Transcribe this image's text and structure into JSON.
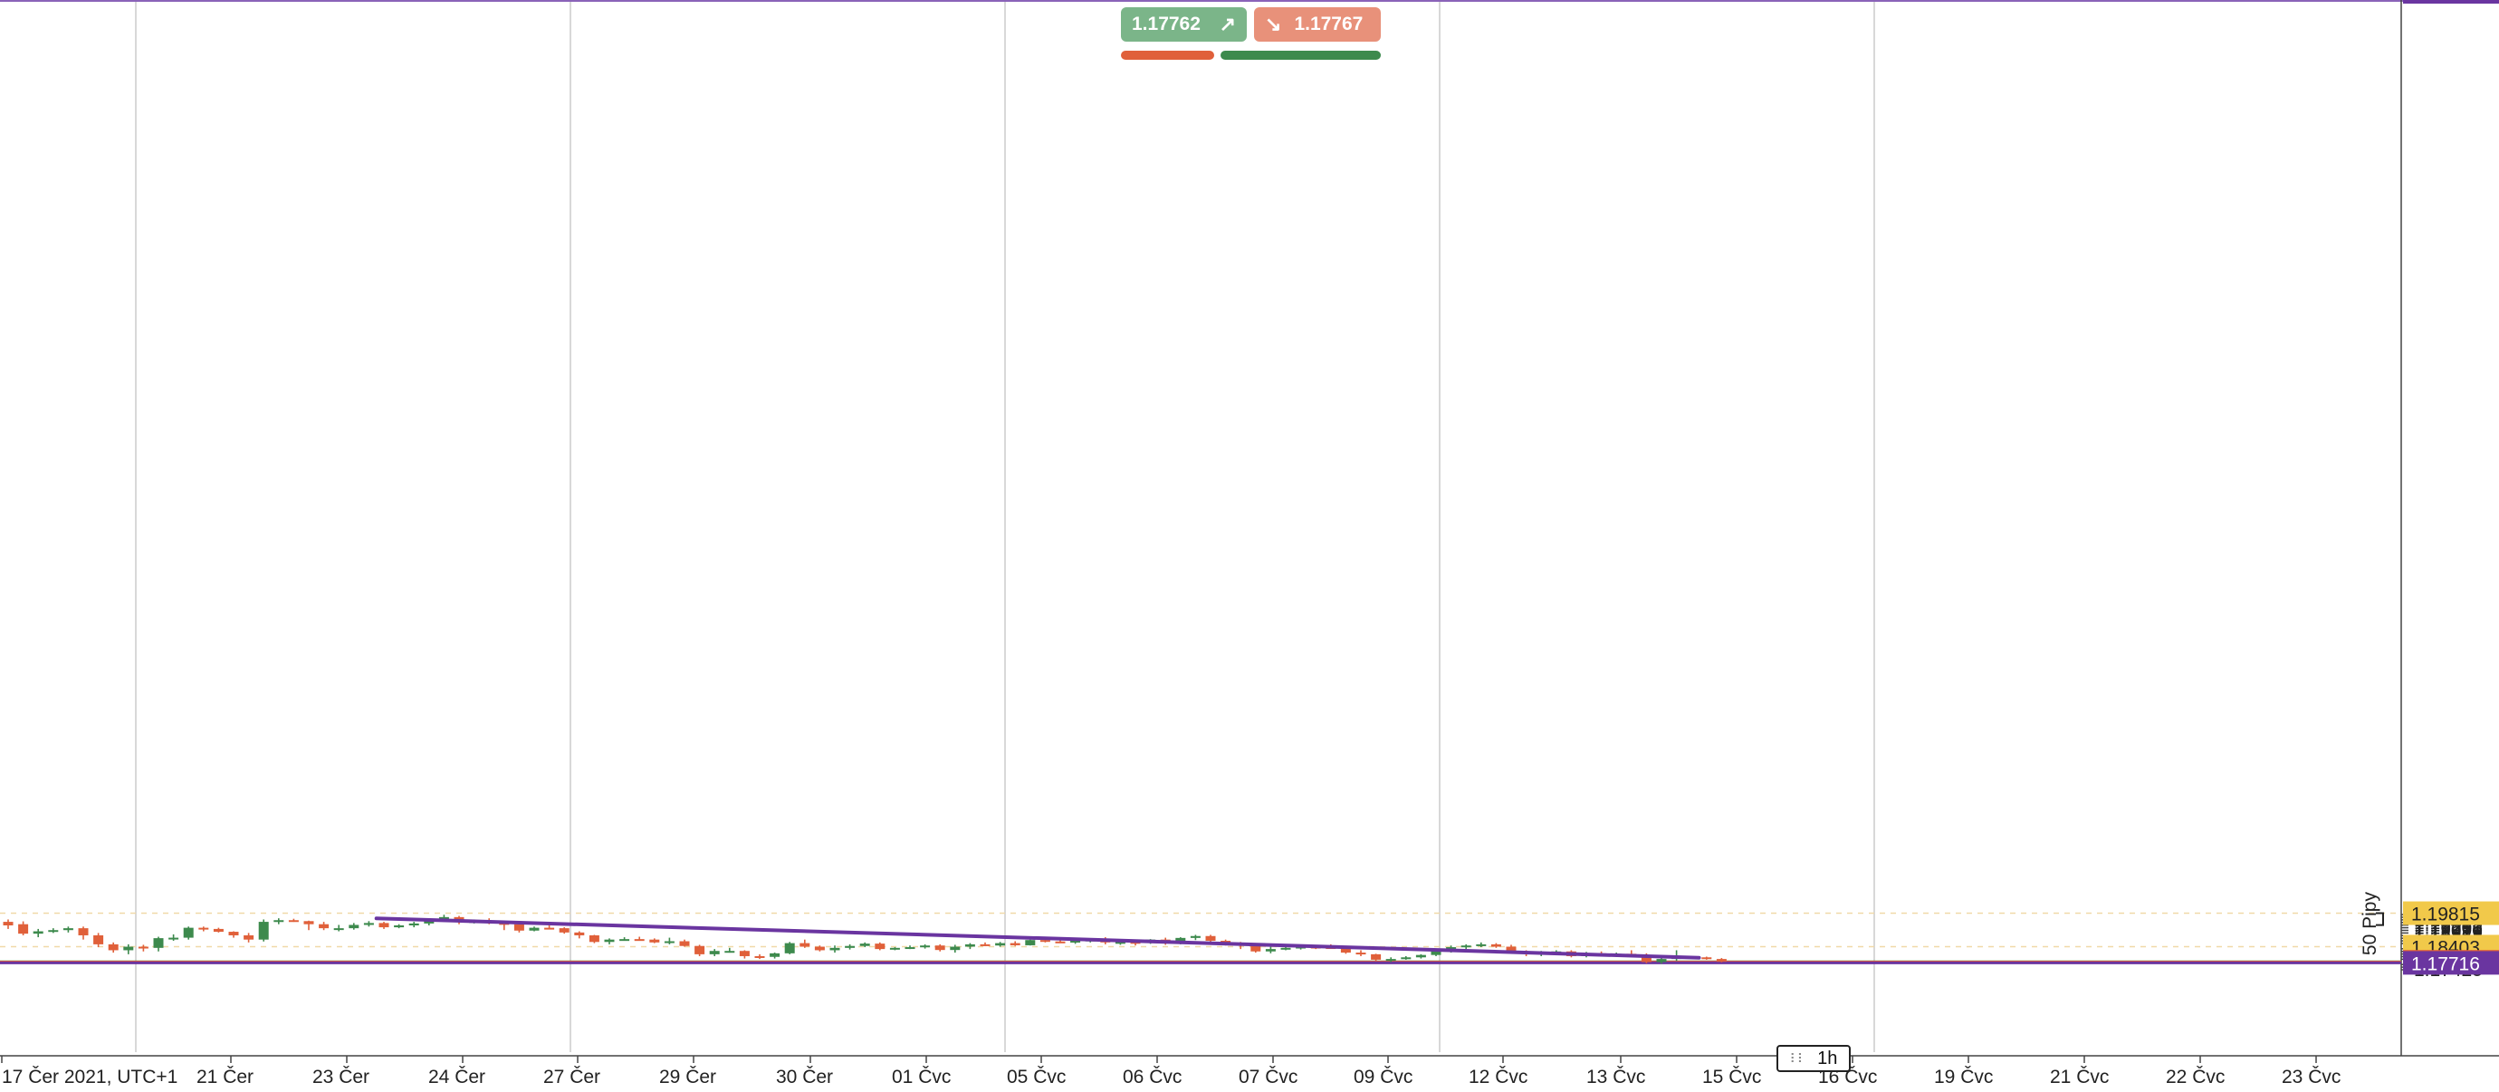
{
  "quote": {
    "ask": "1.17762",
    "bid": "1.17767",
    "ask_icon": "arrow-up-right-icon",
    "bid_icon": "arrow-down-right-icon"
  },
  "timeframe": {
    "label": "1h",
    "icon": "drag-grip-icon"
  },
  "ruler_label": "50 Pipy",
  "colors": {
    "bull": "#3d8a4d",
    "bear": "#e0603a",
    "trendline": "#6a35a0",
    "support": "#6a35a0",
    "price_line_green": "#4b8a2e",
    "price_line_orange": "#e0603a",
    "label_yellow": "#f1c94a",
    "grid": "#bdbdbd"
  },
  "chart_data": {
    "type": "candlestick",
    "y_axis": {
      "min": 1.1737,
      "max": 1.1992,
      "ticks": [
        "1.19756",
        "1.19645",
        "1.19534",
        "1.19423",
        "1.19312",
        "1.19201",
        "1.19090",
        "1.18979",
        "1.18868",
        "1.18757",
        "1.18646",
        "1.18535",
        "1.18313",
        "1.18202",
        "1.18091",
        "1.17980",
        "1.17869",
        "1.17647",
        "1.17536",
        "1.17425"
      ]
    },
    "x_axis": {
      "labels": [
        "17 Čer 2021, UTC+1",
        "21 Čer",
        "23 Čer",
        "24 Čer",
        "27 Čer",
        "29 Čer",
        "30 Čer",
        "01 Čvc",
        "05 Čvc",
        "06 Čvc",
        "07 Čvc",
        "09 Čvc",
        "12 Čvc",
        "13 Čvc",
        "15 Čvc",
        "16 Čvc",
        "19 Čvc",
        "21 Čvc",
        "22 Čvc",
        "23 Čvc"
      ]
    },
    "price_labels": [
      {
        "value": 1.19815,
        "text": "1.19815",
        "style": "yellow"
      },
      {
        "value": 1.18403,
        "text": "1.18403",
        "style": "yellow"
      },
      {
        "value": 1.17762,
        "text": "1.17762",
        "style": "orange"
      },
      {
        "value": 1.17716,
        "text": "1.17716",
        "style": "purple"
      }
    ],
    "horizontal_lines": [
      {
        "value": 1.17767,
        "color": "#4b8a2e"
      },
      {
        "value": 1.17762,
        "color": "#e0603a"
      },
      {
        "value": 1.17716,
        "color": "#6a35a0",
        "width": 3
      }
    ],
    "dashed_lines": [
      1.19815,
      1.18403
    ],
    "trendline": [
      {
        "i": 0,
        "v": 1.19595
      },
      {
        "i": 0,
        "v": 1.17933
      }
    ],
    "trend_points": [
      {
        "t": 24.5,
        "v": 1.19595
      },
      {
        "t": 112.5,
        "v": 1.17933
      }
    ],
    "ruler": {
      "from": 1.19815,
      "to": 1.19315
    },
    "candles": [
      [
        1.1945,
        1.1955,
        1.1915,
        1.193
      ],
      [
        1.1935,
        1.1947,
        1.1888,
        1.1895
      ],
      [
        1.1895,
        1.1915,
        1.188,
        1.1905
      ],
      [
        1.1905,
        1.1918,
        1.1898,
        1.191
      ],
      [
        1.191,
        1.1925,
        1.19,
        1.1918
      ],
      [
        1.1918,
        1.1925,
        1.187,
        1.1888
      ],
      [
        1.1888,
        1.1898,
        1.1838,
        1.185
      ],
      [
        1.185,
        1.1858,
        1.1815,
        1.1825
      ],
      [
        1.1825,
        1.185,
        1.1808,
        1.184
      ],
      [
        1.184,
        1.1848,
        1.182,
        1.1835
      ],
      [
        1.1835,
        1.1882,
        1.182,
        1.1876
      ],
      [
        1.1876,
        1.1892,
        1.1865,
        1.1878
      ],
      [
        1.1878,
        1.1925,
        1.187,
        1.192
      ],
      [
        1.192,
        1.1925,
        1.1905,
        1.1915
      ],
      [
        1.1915,
        1.192,
        1.19,
        1.1903
      ],
      [
        1.1903,
        1.1905,
        1.1878,
        1.1888
      ],
      [
        1.1888,
        1.1898,
        1.1858,
        1.187
      ],
      [
        1.187,
        1.1955,
        1.1862,
        1.1945
      ],
      [
        1.1945,
        1.196,
        1.1935,
        1.1952
      ],
      [
        1.1952,
        1.1958,
        1.1945,
        1.1948
      ],
      [
        1.1948,
        1.195,
        1.191,
        1.1935
      ],
      [
        1.1935,
        1.1945,
        1.191,
        1.1918
      ],
      [
        1.1918,
        1.1932,
        1.1905,
        1.1918
      ],
      [
        1.1918,
        1.194,
        1.1912,
        1.1932
      ],
      [
        1.1932,
        1.1948,
        1.1925,
        1.194
      ],
      [
        1.194,
        1.1945,
        1.1915,
        1.1922
      ],
      [
        1.1922,
        1.1935,
        1.1918,
        1.193
      ],
      [
        1.193,
        1.1945,
        1.1922,
        1.1938
      ],
      [
        1.1938,
        1.1955,
        1.193,
        1.1952
      ],
      [
        1.1952,
        1.1975,
        1.1945,
        1.1965
      ],
      [
        1.1965,
        1.197,
        1.1935,
        1.1945
      ],
      [
        1.1945,
        1.1955,
        1.1938,
        1.1948
      ],
      [
        1.1948,
        1.196,
        1.1935,
        1.194
      ],
      [
        1.194,
        1.195,
        1.191,
        1.1935
      ],
      [
        1.1935,
        1.194,
        1.19,
        1.1908
      ],
      [
        1.1908,
        1.1925,
        1.1905,
        1.192
      ],
      [
        1.192,
        1.193,
        1.1915,
        1.1918
      ],
      [
        1.1918,
        1.1922,
        1.1895,
        1.19
      ],
      [
        1.19,
        1.1905,
        1.1875,
        1.1888
      ],
      [
        1.1888,
        1.189,
        1.1855,
        1.186
      ],
      [
        1.186,
        1.1875,
        1.185,
        1.187
      ],
      [
        1.187,
        1.188,
        1.1865,
        1.1872
      ],
      [
        1.1872,
        1.1882,
        1.1866,
        1.187
      ],
      [
        1.187,
        1.1875,
        1.1855,
        1.1858
      ],
      [
        1.1858,
        1.1878,
        1.185,
        1.1863
      ],
      [
        1.1863,
        1.187,
        1.184,
        1.1843
      ],
      [
        1.1843,
        1.1848,
        1.18,
        1.1808
      ],
      [
        1.1808,
        1.183,
        1.18,
        1.1822
      ],
      [
        1.1822,
        1.1835,
        1.1815,
        1.1822
      ],
      [
        1.1822,
        1.1825,
        1.179,
        1.18
      ],
      [
        1.18,
        1.1808,
        1.1788,
        1.1797
      ],
      [
        1.1797,
        1.1815,
        1.179,
        1.1812
      ],
      [
        1.1812,
        1.186,
        1.1808,
        1.1855
      ],
      [
        1.1855,
        1.187,
        1.1835,
        1.184
      ],
      [
        1.184,
        1.1845,
        1.182,
        1.1825
      ],
      [
        1.1825,
        1.1845,
        1.1815,
        1.1835
      ],
      [
        1.1835,
        1.185,
        1.1828,
        1.1843
      ],
      [
        1.1843,
        1.1858,
        1.1838,
        1.1853
      ],
      [
        1.1853,
        1.1858,
        1.1825,
        1.183
      ],
      [
        1.183,
        1.1838,
        1.1825,
        1.1835
      ],
      [
        1.1835,
        1.1845,
        1.183,
        1.1838
      ],
      [
        1.1838,
        1.185,
        1.1832,
        1.1845
      ],
      [
        1.1845,
        1.185,
        1.182,
        1.1826
      ],
      [
        1.1826,
        1.1848,
        1.1815,
        1.184
      ],
      [
        1.184,
        1.1855,
        1.183,
        1.185
      ],
      [
        1.185,
        1.1858,
        1.1842,
        1.1845
      ],
      [
        1.1845,
        1.186,
        1.184,
        1.1855
      ],
      [
        1.1855,
        1.1863,
        1.1843,
        1.1846
      ],
      [
        1.1846,
        1.187,
        1.1845,
        1.1868
      ],
      [
        1.1868,
        1.1878,
        1.1858,
        1.1862
      ],
      [
        1.1862,
        1.187,
        1.1855,
        1.1858
      ],
      [
        1.1858,
        1.187,
        1.1852,
        1.1865
      ],
      [
        1.1865,
        1.1875,
        1.1858,
        1.187
      ],
      [
        1.187,
        1.188,
        1.185,
        1.1858
      ],
      [
        1.1858,
        1.1865,
        1.1848,
        1.186
      ],
      [
        1.186,
        1.1865,
        1.1845,
        1.1858
      ],
      [
        1.1858,
        1.1872,
        1.1852,
        1.187
      ],
      [
        1.187,
        1.1878,
        1.1848,
        1.1855
      ],
      [
        1.1855,
        1.188,
        1.185,
        1.1877
      ],
      [
        1.1877,
        1.189,
        1.1868,
        1.1885
      ],
      [
        1.1885,
        1.189,
        1.186,
        1.1865
      ],
      [
        1.1865,
        1.187,
        1.1845,
        1.1852
      ],
      [
        1.1852,
        1.186,
        1.183,
        1.1845
      ],
      [
        1.1845,
        1.185,
        1.1815,
        1.182
      ],
      [
        1.182,
        1.184,
        1.1812,
        1.183
      ],
      [
        1.183,
        1.184,
        1.1825,
        1.1835
      ],
      [
        1.1835,
        1.1848,
        1.1828,
        1.184
      ],
      [
        1.184,
        1.1845,
        1.183,
        1.1838
      ],
      [
        1.1838,
        1.185,
        1.1832,
        1.1835
      ],
      [
        1.1835,
        1.184,
        1.181,
        1.1815
      ],
      [
        1.1815,
        1.1825,
        1.18,
        1.1808
      ],
      [
        1.1808,
        1.181,
        1.178,
        1.1785
      ],
      [
        1.1785,
        1.1795,
        1.1775,
        1.1788
      ],
      [
        1.1788,
        1.18,
        1.1785,
        1.1795
      ],
      [
        1.1795,
        1.1808,
        1.179,
        1.1805
      ],
      [
        1.1805,
        1.183,
        1.18,
        1.1825
      ],
      [
        1.1825,
        1.1845,
        1.1815,
        1.1838
      ],
      [
        1.1838,
        1.185,
        1.183,
        1.1845
      ],
      [
        1.1845,
        1.1858,
        1.1838,
        1.185
      ],
      [
        1.185,
        1.1855,
        1.1835,
        1.184
      ],
      [
        1.184,
        1.1848,
        1.1815,
        1.182
      ],
      [
        1.182,
        1.1825,
        1.18,
        1.181
      ],
      [
        1.181,
        1.1822,
        1.18,
        1.1815
      ],
      [
        1.1815,
        1.1825,
        1.1808,
        1.182
      ],
      [
        1.182,
        1.1825,
        1.1795,
        1.18
      ],
      [
        1.18,
        1.1818,
        1.1795,
        1.1812
      ],
      [
        1.1812,
        1.182,
        1.18,
        1.1805
      ],
      [
        1.1805,
        1.1815,
        1.1797,
        1.181
      ],
      [
        1.181,
        1.1825,
        1.18,
        1.1805
      ],
      [
        1.1805,
        1.1812,
        1.177,
        1.1775
      ],
      [
        1.1775,
        1.1792,
        1.1768,
        1.1788
      ],
      [
        1.1788,
        1.1825,
        1.178,
        1.1798
      ],
      [
        1.1798,
        1.18,
        1.179,
        1.1795
      ],
      [
        1.1795,
        1.1798,
        1.1785,
        1.1788
      ],
      [
        1.1788,
        1.1792,
        1.1774,
        1.17762
      ]
    ]
  }
}
